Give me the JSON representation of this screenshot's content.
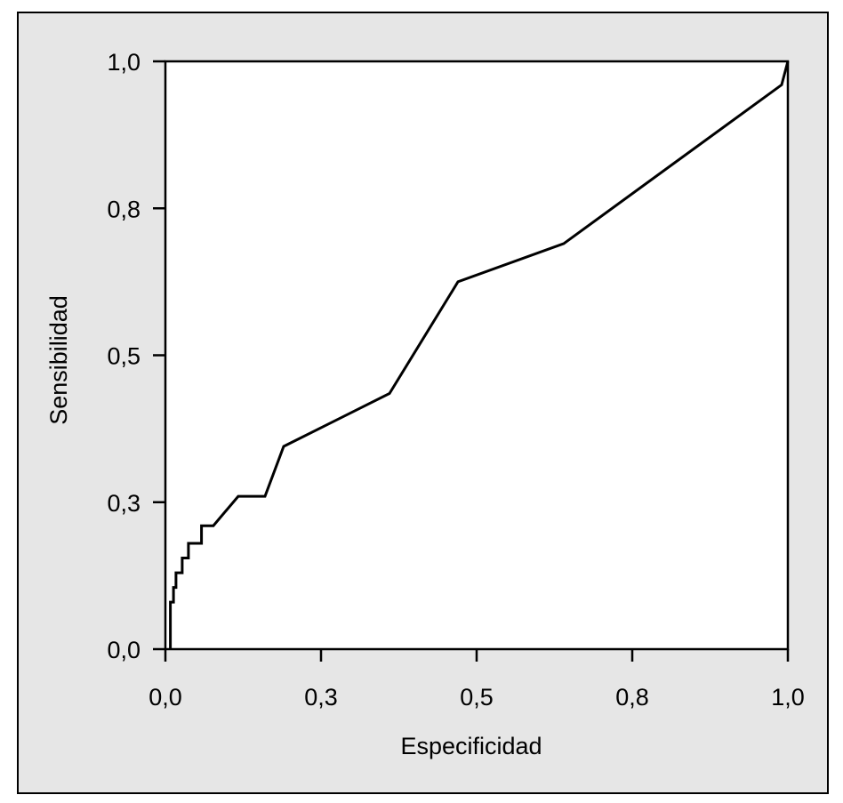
{
  "colors": {
    "frame_background": "#e6e6e6",
    "plot_background": "#ffffff",
    "line": "#000000"
  },
  "chart_data": {
    "type": "line",
    "xlabel": "Especificidad",
    "ylabel": "Sensibilidad",
    "xlim": [
      0,
      1
    ],
    "ylim": [
      0,
      1
    ],
    "xticks": [
      {
        "value": 0.0,
        "label": "0,0"
      },
      {
        "value": 0.25,
        "label": "0,3"
      },
      {
        "value": 0.5,
        "label": "0,5"
      },
      {
        "value": 0.75,
        "label": "0,8"
      },
      {
        "value": 1.0,
        "label": "1,0"
      }
    ],
    "yticks": [
      {
        "value": 0.0,
        "label": "0,0"
      },
      {
        "value": 0.25,
        "label": "0,3"
      },
      {
        "value": 0.5,
        "label": "0,5"
      },
      {
        "value": 0.75,
        "label": "0,8"
      },
      {
        "value": 1.0,
        "label": "1,0"
      }
    ],
    "grid": false,
    "series": [
      {
        "x": [
          0.008,
          0.008,
          0.013,
          0.013,
          0.017,
          0.017,
          0.027,
          0.027,
          0.037,
          0.037,
          0.058,
          0.058,
          0.077,
          0.077,
          0.117,
          0.16,
          0.19,
          0.36,
          0.47,
          0.64,
          0.99,
          1.0
        ],
        "y": [
          0.0,
          0.08,
          0.08,
          0.105,
          0.105,
          0.13,
          0.13,
          0.155,
          0.155,
          0.18,
          0.18,
          0.21,
          0.21,
          0.21,
          0.26,
          0.26,
          0.345,
          0.435,
          0.625,
          0.69,
          0.96,
          1.0
        ]
      }
    ]
  }
}
